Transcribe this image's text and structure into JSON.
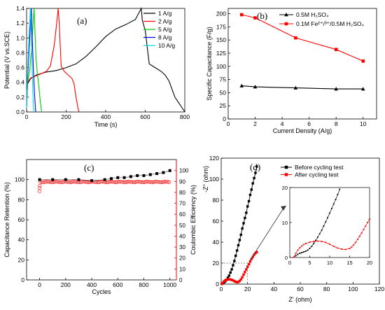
{
  "chart_data": [
    {
      "id": "a",
      "type": "line",
      "panel_label": "(a)",
      "xlabel": "Time (s)",
      "ylabel": "Potential (V vs.SCE)",
      "xlim": [
        0,
        800
      ],
      "ylim": [
        0,
        1.4
      ],
      "xticks": [
        0,
        200,
        400,
        600,
        800
      ],
      "yticks": [
        0.0,
        0.2,
        0.4,
        0.6,
        0.8,
        1.0,
        1.2,
        1.4
      ],
      "legend_position": "top-right",
      "series": [
        {
          "name": "1 A/g",
          "color": "#000000",
          "x": [
            0,
            5,
            20,
            50,
            100,
            150,
            200,
            250,
            300,
            350,
            400,
            450,
            500,
            550,
            580,
            585,
            600,
            620,
            650,
            680,
            700,
            720,
            750,
            780,
            800
          ],
          "y": [
            0.08,
            0.38,
            0.45,
            0.5,
            0.54,
            0.56,
            0.6,
            0.65,
            0.75,
            0.88,
            1.02,
            1.12,
            1.18,
            1.25,
            1.4,
            1.24,
            1.1,
            0.65,
            0.6,
            0.55,
            0.5,
            0.42,
            0.2,
            0.08,
            0.0
          ]
        },
        {
          "name": "2 A/g",
          "color": "#ff0000",
          "x": [
            0,
            5,
            20,
            60,
            100,
            120,
            140,
            150,
            160,
            165,
            175,
            190,
            210,
            230,
            240,
            250,
            260,
            265
          ],
          "y": [
            0.08,
            0.4,
            0.46,
            0.5,
            0.55,
            0.62,
            0.9,
            1.15,
            1.4,
            1.2,
            0.62,
            0.55,
            0.5,
            0.45,
            0.38,
            0.2,
            0.05,
            0.0
          ]
        },
        {
          "name": "5 A/g",
          "color": "#00cc00",
          "x": [
            0,
            5,
            15,
            25,
            32,
            38,
            42,
            48,
            55,
            62,
            70,
            76
          ],
          "y": [
            0.05,
            0.4,
            0.55,
            0.85,
            1.15,
            1.4,
            1.1,
            0.7,
            0.5,
            0.35,
            0.12,
            0.0
          ]
        },
        {
          "name": "8 A/g",
          "color": "#0000ff",
          "x": [
            0,
            4,
            10,
            16,
            20,
            24,
            28,
            34,
            40,
            46
          ],
          "y": [
            0.05,
            0.4,
            0.7,
            1.0,
            1.25,
            1.4,
            1.05,
            0.6,
            0.25,
            0.0
          ]
        },
        {
          "name": "10 A/g",
          "color": "#00dddd",
          "x": [
            0,
            3,
            8,
            13,
            17,
            20,
            24,
            28,
            32,
            36
          ],
          "y": [
            0.05,
            0.4,
            0.75,
            1.05,
            1.3,
            1.4,
            1.0,
            0.6,
            0.25,
            0.0
          ]
        }
      ]
    },
    {
      "id": "b",
      "type": "line",
      "panel_label": "(b)",
      "xlabel": "Current Density (A/g)",
      "ylabel": "Specific Capacitance (F/g)",
      "xlim": [
        0,
        11
      ],
      "ylim": [
        0,
        210
      ],
      "xticks": [
        0,
        2,
        4,
        6,
        8,
        10
      ],
      "yticks": [
        0,
        25,
        50,
        75,
        100,
        125,
        150,
        175,
        200
      ],
      "legend_position": "top-right",
      "series": [
        {
          "name": "0.5M H₂SO₄",
          "color": "#000000",
          "marker": "triangle",
          "x": [
            1,
            2,
            5,
            8,
            10
          ],
          "y": [
            63,
            61,
            59,
            57,
            57
          ]
        },
        {
          "name": "0.1M Fe²⁺/³⁺/0.5M H₂SO₄",
          "color": "#ff0000",
          "marker": "square",
          "x": [
            1,
            2,
            5,
            8,
            10
          ],
          "y": [
            198,
            192,
            154,
            132,
            110
          ]
        }
      ]
    },
    {
      "id": "c",
      "type": "scatter",
      "panel_label": "(c)",
      "xlabel": "Cycles",
      "ylabel": "Capacitance Retention (%)",
      "ylabel_right": "Coulombic Efficiency (%)",
      "xlim": [
        -100,
        1050
      ],
      "ylim": [
        0,
        120
      ],
      "ylim_right": [
        0,
        110
      ],
      "xticks": [
        0,
        200,
        400,
        600,
        800,
        1000
      ],
      "yticks": [
        0,
        20,
        40,
        60,
        80,
        100
      ],
      "yticks_right": [
        0,
        10,
        20,
        30,
        40,
        50,
        60,
        70,
        80,
        90,
        100
      ],
      "series": [
        {
          "name": "Capacitance Retention",
          "color": "#000000",
          "marker": "square",
          "axis": "left",
          "x": [
            0,
            100,
            200,
            300,
            400,
            500,
            550,
            600,
            650,
            700,
            750,
            800,
            850,
            900,
            950,
            1000
          ],
          "y": [
            100,
            100,
            100,
            100,
            99,
            100,
            101,
            102,
            102,
            103,
            104,
            104,
            105,
            106,
            107,
            109
          ]
        },
        {
          "name": "Coulombic Efficiency",
          "color": "#ff0000",
          "marker": "circle-open",
          "axis": "right",
          "x_start": 5,
          "x_end": 1000,
          "x_step": 10,
          "y_value": 89.5,
          "extra_points": [
            {
              "x": 0,
              "y": 81
            },
            {
              "x": 0,
              "y": 84
            },
            {
              "x": 2,
              "y": 86
            }
          ]
        }
      ]
    },
    {
      "id": "d",
      "type": "line",
      "panel_label": "(d)",
      "xlabel": "Z' (ohm)",
      "ylabel": "-Z'' (ohm)",
      "xlim": [
        0,
        120
      ],
      "ylim": [
        0,
        120
      ],
      "xticks": [
        0,
        20,
        40,
        60,
        80,
        100,
        120
      ],
      "yticks": [
        0,
        20,
        40,
        60,
        80,
        100,
        120
      ],
      "legend_position": "top-right",
      "series": [
        {
          "name": "Before cycling test",
          "color": "#000000",
          "marker": "square",
          "x": [
            0.5,
            1,
            2,
            3,
            4,
            5,
            6,
            7,
            8,
            9,
            10,
            11,
            12,
            13,
            14,
            15,
            16,
            17,
            18,
            19,
            20,
            21,
            22,
            23,
            24,
            25,
            26,
            27
          ],
          "y": [
            0.2,
            0.8,
            1.5,
            2.5,
            4,
            6,
            8,
            11,
            14,
            18,
            22,
            27,
            32,
            37,
            42,
            47,
            53,
            58,
            63,
            68,
            74,
            79,
            85,
            90,
            96,
            101,
            106,
            112
          ]
        },
        {
          "name": "After cycling test",
          "color": "#ff0000",
          "marker": "square",
          "x": [
            0.5,
            1,
            2,
            3,
            4,
            5,
            6,
            7,
            8,
            9,
            10,
            11,
            12,
            13,
            14,
            15,
            16,
            17,
            18,
            19,
            20,
            21,
            22,
            23,
            24,
            25,
            26,
            27
          ],
          "y": [
            0.2,
            1.0,
            2.5,
            3.5,
            4.2,
            4.5,
            4.6,
            4.4,
            4.0,
            3.5,
            2.8,
            2.2,
            1.8,
            2.0,
            3.0,
            4.5,
            6.5,
            9.0,
            11.5,
            14.0,
            16.5,
            19.0,
            21.5,
            24.0,
            26.0,
            28.0,
            29.5,
            30.5
          ]
        }
      ],
      "inset": {
        "xlim": [
          0,
          20
        ],
        "ylim": [
          0,
          20
        ],
        "xticks": [
          0,
          5,
          10,
          15,
          20
        ],
        "yticks": [
          0,
          10,
          20
        ],
        "series": [
          {
            "name": "Before cycling test",
            "color": "#000000",
            "x": [
              1,
              1.5,
              2,
              2.5,
              3,
              3.5,
              4,
              4.5,
              5,
              5.5,
              6,
              6.5,
              7,
              7.5,
              8,
              8.5,
              9,
              9.5,
              10,
              10.5,
              11,
              11.5,
              12,
              12.5
            ],
            "y": [
              0.1,
              0.5,
              0.9,
              1.2,
              1.4,
              1.6,
              1.8,
              2.1,
              2.6,
              3.2,
              4.0,
              4.9,
              5.8,
              6.8,
              7.8,
              9.0,
              10.2,
              11.4,
              12.7,
              14.0,
              15.3,
              16.6,
              18.0,
              19.5
            ]
          },
          {
            "name": "After cycling test",
            "color": "#ff0000",
            "x": [
              1,
              1.5,
              2,
              2.5,
              3,
              3.5,
              4,
              5,
              6,
              7,
              8,
              9,
              10,
              11,
              12,
              13,
              14,
              15,
              15.5,
              16,
              16.5,
              17,
              17.5,
              18,
              18.5,
              19,
              19.5,
              20
            ],
            "y": [
              0.1,
              1.2,
              2.1,
              2.8,
              3.3,
              3.7,
              4.0,
              4.4,
              4.6,
              4.7,
              4.6,
              4.3,
              3.8,
              3.2,
              2.7,
              2.4,
              2.3,
              2.6,
              3.0,
              3.6,
              4.3,
              5.2,
              6.1,
              7.0,
              8.0,
              9.0,
              10.0,
              11.0
            ]
          }
        ]
      }
    }
  ]
}
